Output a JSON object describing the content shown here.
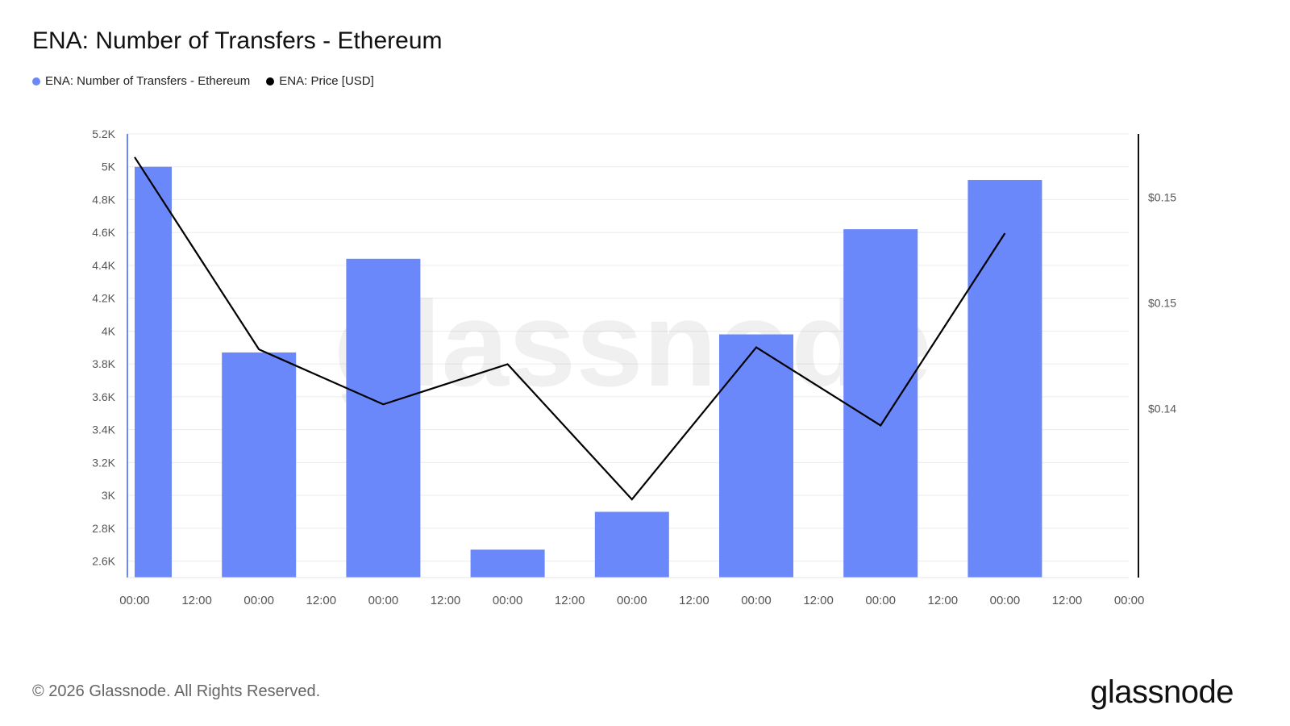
{
  "title": "ENA: Number of Transfers - Ethereum",
  "legend": [
    {
      "label": "ENA: Number of Transfers - Ethereum",
      "color": "#6a88fa"
    },
    {
      "label": "ENA: Price [USD]",
      "color": "#000000"
    }
  ],
  "watermark": "glassnode",
  "footer": {
    "copyright": "© 2026 Glassnode. All Rights Reserved.",
    "logo": "glassnode"
  },
  "chart_data": {
    "type": "bar",
    "x_tick_labels": [
      "00:00",
      "12:00",
      "00:00",
      "12:00",
      "00:00",
      "12:00",
      "00:00",
      "12:00",
      "00:00",
      "12:00",
      "00:00",
      "12:00",
      "00:00",
      "12:00",
      "00:00",
      "12:00",
      "00:00"
    ],
    "y_left": {
      "ticks": [
        2600,
        2800,
        3000,
        3200,
        3400,
        3600,
        3800,
        4000,
        4200,
        4400,
        4600,
        4800,
        5000,
        5200
      ],
      "tick_labels": [
        "2.6K",
        "2.8K",
        "3K",
        "3.2K",
        "3.4K",
        "3.6K",
        "3.8K",
        "4K",
        "4.2K",
        "4.4K",
        "4.6K",
        "4.8K",
        "5K",
        "5.2K"
      ],
      "range": [
        2500,
        5200
      ]
    },
    "y_right": {
      "tick_labels": [
        "$0.14",
        "$0.15",
        "$0.15"
      ],
      "tick_values": [
        0.14,
        0.145,
        0.15
      ],
      "range": [
        0.132,
        0.153
      ]
    },
    "series": [
      {
        "name": "ENA: Number of Transfers - Ethereum",
        "type": "bar",
        "color": "#6a88fa",
        "x_index": [
          0,
          1,
          2,
          3,
          4,
          5,
          6,
          7
        ],
        "values": [
          5000,
          3870,
          4440,
          2670,
          2900,
          3980,
          4620,
          4920
        ]
      },
      {
        "name": "ENA: Price [USD]",
        "type": "line",
        "color": "#000000",
        "x_index": [
          0,
          1,
          2,
          3,
          4,
          5,
          6,
          7
        ],
        "values": [
          0.1519,
          0.1428,
          0.1402,
          0.1421,
          0.1357,
          0.1429,
          0.1392,
          0.1483
        ]
      }
    ],
    "grid": true,
    "legend_position": "top-left"
  }
}
